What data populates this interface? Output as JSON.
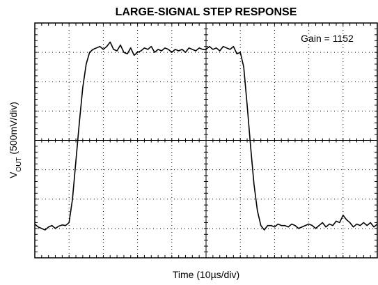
{
  "chart_data": {
    "type": "line",
    "title": "LARGE-SIGNAL STEP RESPONSE",
    "ylabel_parts": [
      "V",
      "OUT",
      " (500mV/div)"
    ],
    "xlabel": "Time (10µs/div)",
    "annotation": "Gain = 1152",
    "xlim": [
      0,
      10
    ],
    "ylim": [
      0,
      8
    ],
    "xticks": [
      0,
      1,
      2,
      3,
      4,
      5,
      6,
      7,
      8,
      9,
      10
    ],
    "yticks": [
      0,
      1,
      2,
      3,
      4,
      5,
      6,
      7,
      8
    ],
    "grid": true,
    "x": [
      0,
      0.1,
      0.2,
      0.3,
      0.4,
      0.5,
      0.6,
      0.7,
      0.8,
      0.9,
      1,
      1.1,
      1.2,
      1.3,
      1.4,
      1.5,
      1.6,
      1.7,
      1.8,
      1.9,
      2,
      2.1,
      2.2,
      2.3,
      2.4,
      2.5,
      2.6,
      2.7,
      2.8,
      2.9,
      3,
      3.1,
      3.2,
      3.3,
      3.4,
      3.5,
      3.6,
      3.7,
      3.8,
      3.9,
      4,
      4.1,
      4.2,
      4.3,
      4.4,
      4.5,
      4.6,
      4.7,
      4.8,
      4.9,
      5,
      5.1,
      5.2,
      5.3,
      5.4,
      5.5,
      5.6,
      5.7,
      5.8,
      5.9,
      6,
      6.1,
      6.2,
      6.3,
      6.4,
      6.5,
      6.6,
      6.7,
      6.8,
      6.9,
      7,
      7.1,
      7.2,
      7.3,
      7.4,
      7.5,
      7.6,
      7.7,
      7.8,
      7.9,
      8,
      8.1,
      8.2,
      8.3,
      8.4,
      8.5,
      8.6,
      8.7,
      8.8,
      8.9,
      9,
      9.1,
      9.2,
      9.3,
      9.4,
      9.5,
      9.6,
      9.7,
      9.8,
      9.9,
      10
    ],
    "series": [
      {
        "color": "#000000",
        "values": [
          1.15,
          1.05,
          1.0,
          0.95,
          1.05,
          1.1,
          1.0,
          1.08,
          1.12,
          1.1,
          1.2,
          2.0,
          3.3,
          4.6,
          5.8,
          6.6,
          7.0,
          7.1,
          7.15,
          7.2,
          7.1,
          7.2,
          7.35,
          7.1,
          7.05,
          7.25,
          7.0,
          6.95,
          7.15,
          6.9,
          7.0,
          7.05,
          7.15,
          7.1,
          7.2,
          7.0,
          7.1,
          7.05,
          7.15,
          7.1,
          7.0,
          7.1,
          7.05,
          7.1,
          7.0,
          7.15,
          7.1,
          7.05,
          7.15,
          7.1,
          7.1,
          7.2,
          7.1,
          7.15,
          7.05,
          7.2,
          7.15,
          7.1,
          7.2,
          6.95,
          7.0,
          6.5,
          5.2,
          3.8,
          2.5,
          1.6,
          1.1,
          0.95,
          1.1,
          1.1,
          1.05,
          1.15,
          1.1,
          1.1,
          1.05,
          1.15,
          1.1,
          1.0,
          1.05,
          1.1,
          1.15,
          1.1,
          1.0,
          1.1,
          1.2,
          1.05,
          1.15,
          1.1,
          1.25,
          1.2,
          1.45,
          1.3,
          1.2,
          1.05,
          1.15,
          1.1,
          1.2,
          1.1,
          1.2,
          1.05,
          1.15
        ]
      }
    ]
  }
}
